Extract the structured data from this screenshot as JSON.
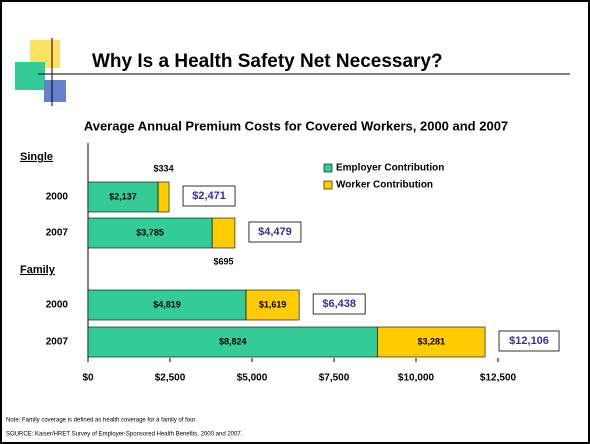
{
  "chart_data": {
    "type": "stacked_barh",
    "title": "Why Is a Health Safety Net Necessary?",
    "subtitle": "Average Annual Premium Costs for Covered Workers, 2000 and 2007",
    "group_labels": [
      "Single",
      "Family"
    ],
    "categories": [
      "2000",
      "2007",
      "2000",
      "2007"
    ],
    "series": [
      {
        "name": "Employer Contribution",
        "color": "#33CC99",
        "values": [
          2137,
          3785,
          4819,
          8824
        ],
        "value_labels": [
          "$2,137",
          "$3,785",
          "$4,819",
          "$8,824"
        ]
      },
      {
        "name": "Worker Contribution",
        "color": "#FFCC00",
        "values": [
          334,
          695,
          1619,
          3281
        ],
        "value_labels": [
          "$334",
          "$695",
          "$1,619",
          "$3,281"
        ]
      }
    ],
    "totals": {
      "values": [
        2471,
        4479,
        6438,
        12106
      ],
      "value_labels": [
        "$2,471",
        "$4,479",
        "$6,438",
        "$12,106"
      ]
    },
    "xlim": [
      0,
      12500
    ],
    "xticks": [
      {
        "value": 0,
        "label": "$0"
      },
      {
        "value": 2500,
        "label": "$2,500"
      },
      {
        "value": 5000,
        "label": "$5,000"
      },
      {
        "value": 7500,
        "label": "$7,500"
      },
      {
        "value": 10000,
        "label": "$10,000"
      },
      {
        "value": 12500,
        "label": "$12,500"
      }
    ],
    "legend": "upper right",
    "notes": [
      "Note: Family coverage is defined as health coverage for a family of four.",
      "SOURCE:  Kaiser/HRET Survey of Employer-Sponsored Health Benefits, 2000 and 2007."
    ]
  }
}
